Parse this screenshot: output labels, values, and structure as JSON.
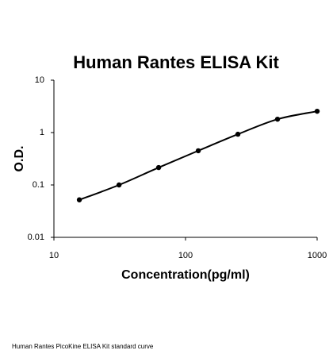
{
  "chart_data": {
    "type": "scatter",
    "title": "Human Rantes ELISA Kit",
    "x_label": "Concentration(pg/ml)",
    "y_label": "O.D.",
    "x_log": true,
    "y_log": true,
    "xlim": [
      10,
      1000
    ],
    "xticks": [
      10,
      100,
      1000
    ],
    "ylim": [
      0.01,
      10
    ],
    "yticks": [
      0.01,
      0.1,
      1,
      10
    ],
    "smooth_line": true,
    "series": [
      {
        "color": "#000000",
        "x": [
          15.6,
          31.25,
          62.5,
          125,
          250,
          500,
          1000
        ],
        "values": [
          0.052,
          0.1,
          0.215,
          0.45,
          0.93,
          1.8,
          2.55
        ]
      }
    ]
  },
  "caption": "Human Rantes PicoKine ELISA Kit standard curve"
}
